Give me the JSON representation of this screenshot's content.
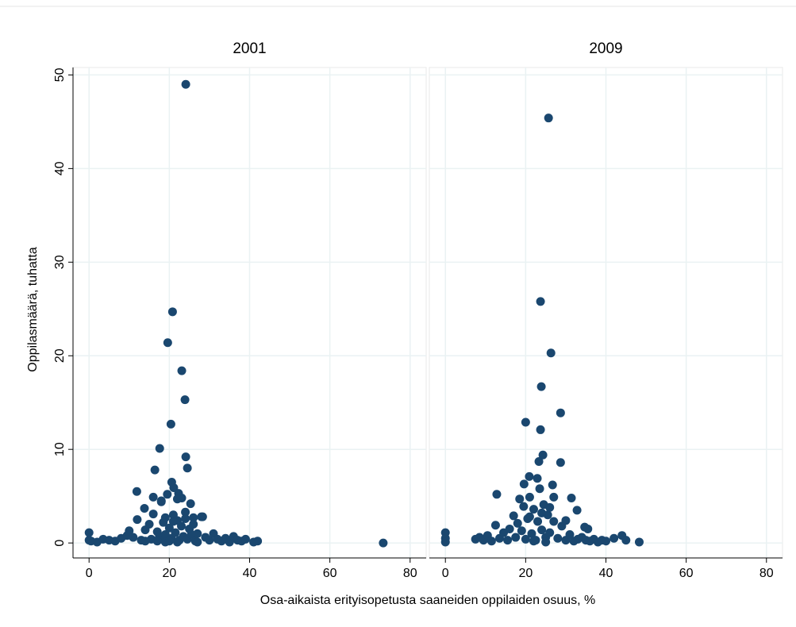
{
  "chart_data": {
    "type": "scatter",
    "xlabel": "Osa-aikaista erityisopetusta saaneiden oppilaiden osuus, %",
    "ylabel": "Oppilasmäärä, tuhatta",
    "color": "#1a476f",
    "grid": true,
    "xlim": [
      -4,
      84
    ],
    "ylim": [
      -1.6,
      50.8
    ],
    "xticks": [
      0,
      20,
      40,
      60,
      80
    ],
    "yticks": [
      0,
      10,
      20,
      30,
      40,
      50
    ],
    "panels": [
      {
        "title": "2001",
        "x": [
          24.1,
          20.8,
          19.6,
          23.1,
          23.9,
          20.4,
          17.6,
          24.1,
          24.5,
          16.4,
          20.6,
          21.1,
          11.9,
          22.3,
          23.1,
          25.3,
          13.8,
          28.3,
          73.3,
          0,
          0,
          0.5,
          2,
          3.5,
          5,
          6.5,
          8,
          9.5,
          10,
          11,
          12,
          13,
          14,
          15,
          15.5,
          16,
          17,
          17.5,
          18,
          18.5,
          19,
          19.5,
          20,
          20.5,
          21,
          21.5,
          22,
          22.5,
          23,
          23.5,
          24,
          24.5,
          25,
          25.5,
          26,
          26.5,
          27,
          28,
          29,
          30,
          31,
          32,
          33,
          34,
          35,
          36,
          37,
          38,
          39,
          41,
          42,
          16,
          18,
          19,
          21,
          22,
          24,
          26,
          17,
          19,
          20,
          22,
          14,
          27
        ],
        "values": [
          49.0,
          24.7,
          21.4,
          18.4,
          15.3,
          12.7,
          10.1,
          9.2,
          8.0,
          7.8,
          6.5,
          5.9,
          5.5,
          5.3,
          4.8,
          4.2,
          3.7,
          2.8,
          0.0,
          1.1,
          0.3,
          0.2,
          0.1,
          0.4,
          0.3,
          0.2,
          0.5,
          0.8,
          1.3,
          0.6,
          2.5,
          0.3,
          1.4,
          2.0,
          0.4,
          3.1,
          1.2,
          0.6,
          4.4,
          2.2,
          0.9,
          5.2,
          1.6,
          0.5,
          3.0,
          1.1,
          2.4,
          0.3,
          1.8,
          0.7,
          3.3,
          0.4,
          1.5,
          0.9,
          2.0,
          0.2,
          1.0,
          2.8,
          0.6,
          0.3,
          1.0,
          0.4,
          0.2,
          0.5,
          0.1,
          0.7,
          0.3,
          0.2,
          0.4,
          0.1,
          0.2,
          4.9,
          4.5,
          2.7,
          2.3,
          4.7,
          2.6,
          2.7,
          0.2,
          0.1,
          0.2,
          0.1,
          0.2,
          0.1
        ]
      },
      {
        "title": "2009",
        "x": [
          25.7,
          23.7,
          26.3,
          23.9,
          28.7,
          20.0,
          23.7,
          24.3,
          28.7,
          23.3,
          20.9,
          26.7,
          22.9,
          12.8,
          31.4,
          32.8,
          34.7,
          19.6,
          0,
          0,
          0,
          7.5,
          8.5,
          9.5,
          10.5,
          11.5,
          12.5,
          13.5,
          14.5,
          15.5,
          16,
          17,
          17.5,
          18,
          18.5,
          19,
          19.5,
          20,
          20.5,
          21,
          21.5,
          22,
          22.5,
          23,
          23.5,
          24,
          24.5,
          25,
          25.5,
          26,
          27,
          28,
          29,
          30,
          31,
          32,
          33,
          34,
          35,
          36,
          37,
          38,
          39,
          40,
          42,
          44,
          45,
          48.3,
          21,
          24,
          26,
          27,
          22,
          25,
          35.5,
          30
        ],
        "values": [
          45.4,
          25.8,
          20.3,
          16.7,
          13.9,
          12.9,
          12.1,
          9.4,
          8.6,
          8.7,
          7.1,
          6.2,
          6.9,
          5.2,
          4.8,
          3.5,
          1.7,
          6.3,
          1.1,
          0.5,
          0.1,
          0.4,
          0.6,
          0.3,
          0.8,
          0.2,
          1.9,
          0.5,
          1.1,
          0.3,
          1.5,
          2.9,
          0.6,
          2.1,
          4.7,
          1.3,
          3.9,
          0.4,
          2.6,
          4.9,
          1.0,
          3.6,
          0.3,
          2.3,
          5.8,
          1.4,
          4.1,
          0.6,
          3.0,
          1.1,
          2.3,
          0.5,
          1.8,
          0.3,
          0.9,
          0.2,
          0.4,
          0.6,
          0.3,
          0.2,
          0.4,
          0.1,
          0.3,
          0.2,
          0.5,
          0.8,
          0.3,
          0.1,
          2.8,
          3.2,
          3.8,
          4.9,
          0.2,
          0.1,
          1.5,
          2.4
        ]
      }
    ]
  }
}
